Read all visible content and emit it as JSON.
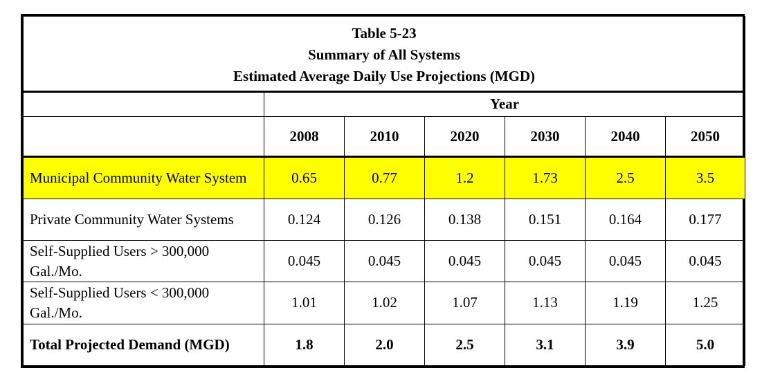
{
  "title": {
    "line1": "Table 5-23",
    "line2": "Summary of All Systems",
    "line3": "Estimated Average Daily Use Projections (MGD)"
  },
  "year_label": "Year",
  "years": [
    "2008",
    "2010",
    "2020",
    "2030",
    "2040",
    "2050"
  ],
  "rows": [
    {
      "label": "Municipal Community Water System",
      "values": [
        "0.65",
        "0.77",
        "1.2",
        "1.73",
        "2.5",
        "3.5"
      ]
    },
    {
      "label": "Private Community Water Systems",
      "values": [
        "0.124",
        "0.126",
        "0.138",
        "0.151",
        "0.164",
        "0.177"
      ]
    },
    {
      "label": "Self-Supplied Users > 300,000 Gal./Mo.",
      "values": [
        "0.045",
        "0.045",
        "0.045",
        "0.045",
        "0.045",
        "0.045"
      ]
    },
    {
      "label": "Self-Supplied Users < 300,000 Gal./Mo.",
      "values": [
        "1.01",
        "1.02",
        "1.07",
        "1.13",
        "1.19",
        "1.25"
      ]
    },
    {
      "label": "Total Projected Demand (MGD)",
      "values": [
        "1.8",
        "2.0",
        "2.5",
        "3.1",
        "3.9",
        "5.0"
      ]
    }
  ],
  "highlight_color": "#ffff00"
}
